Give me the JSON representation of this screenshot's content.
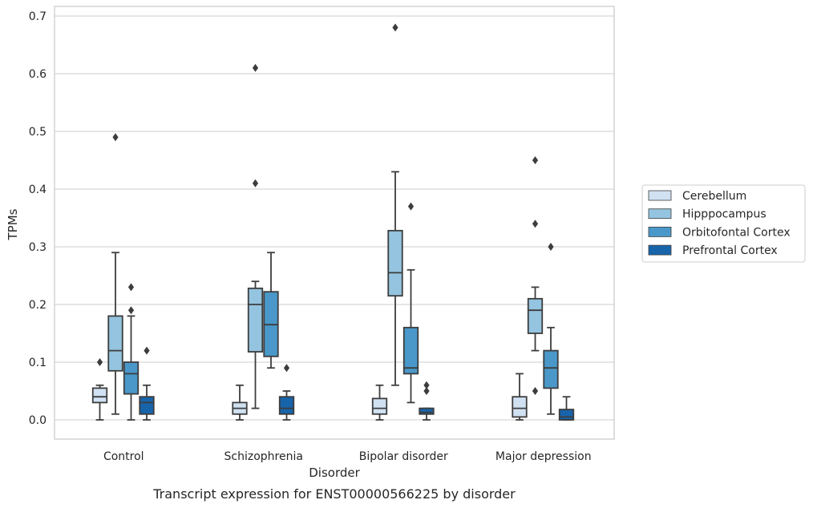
{
  "caption": "Transcript expression for ENST00000566225 by disorder",
  "chart_data": {
    "type": "box",
    "title": "",
    "xlabel": "Disorder",
    "ylabel": "TPMs",
    "ylim": [
      -0.032,
      0.715
    ],
    "yticks": [
      0.0,
      0.1,
      0.2,
      0.3,
      0.4,
      0.5,
      0.6,
      0.7
    ],
    "ytick_labels": [
      "0.0",
      "0.1",
      "0.2",
      "0.3",
      "0.4",
      "0.5",
      "0.6",
      "0.7"
    ],
    "grid": "horizontal",
    "legend_position": "right",
    "categories": [
      "Control",
      "Schizophrenia",
      "Bipolar disorder",
      "Major depression"
    ],
    "series": [
      {
        "name": "Cerebellum",
        "color": "#d0e1f2",
        "boxes": [
          {
            "whislo": 0.0,
            "q1": 0.03,
            "med": 0.04,
            "q3": 0.055,
            "whishi": 0.06,
            "fliers": [
              0.1
            ]
          },
          {
            "whislo": 0.0,
            "q1": 0.01,
            "med": 0.02,
            "q3": 0.03,
            "whishi": 0.06,
            "fliers": []
          },
          {
            "whislo": 0.0,
            "q1": 0.01,
            "med": 0.02,
            "q3": 0.037,
            "whishi": 0.06,
            "fliers": []
          },
          {
            "whislo": 0.0,
            "q1": 0.005,
            "med": 0.02,
            "q3": 0.04,
            "whishi": 0.08,
            "fliers": []
          }
        ]
      },
      {
        "name": "Hipppocampus",
        "color": "#94c4df",
        "boxes": [
          {
            "whislo": 0.01,
            "q1": 0.085,
            "med": 0.12,
            "q3": 0.18,
            "whishi": 0.29,
            "fliers": [
              0.49
            ]
          },
          {
            "whislo": 0.02,
            "q1": 0.118,
            "med": 0.2,
            "q3": 0.228,
            "whishi": 0.24,
            "fliers": [
              0.41,
              0.61
            ]
          },
          {
            "whislo": 0.06,
            "q1": 0.215,
            "med": 0.255,
            "q3": 0.328,
            "whishi": 0.43,
            "fliers": [
              0.68
            ]
          },
          {
            "whislo": 0.12,
            "q1": 0.15,
            "med": 0.19,
            "q3": 0.21,
            "whishi": 0.23,
            "fliers": [
              0.05,
              0.34,
              0.45
            ]
          }
        ]
      },
      {
        "name": "Orbitofontal Cortex",
        "color": "#4a98c9",
        "boxes": [
          {
            "whislo": 0.0,
            "q1": 0.045,
            "med": 0.08,
            "q3": 0.1,
            "whishi": 0.18,
            "fliers": [
              0.19,
              0.23
            ]
          },
          {
            "whislo": 0.09,
            "q1": 0.11,
            "med": 0.165,
            "q3": 0.222,
            "whishi": 0.29,
            "fliers": []
          },
          {
            "whislo": 0.03,
            "q1": 0.08,
            "med": 0.09,
            "q3": 0.16,
            "whishi": 0.26,
            "fliers": [
              0.37
            ]
          },
          {
            "whislo": 0.01,
            "q1": 0.055,
            "med": 0.09,
            "q3": 0.12,
            "whishi": 0.16,
            "fliers": [
              0.3
            ]
          }
        ]
      },
      {
        "name": "Prefrontal Cortex",
        "color": "#1764ab",
        "boxes": [
          {
            "whislo": 0.0,
            "q1": 0.01,
            "med": 0.03,
            "q3": 0.04,
            "whishi": 0.06,
            "fliers": [
              0.12
            ]
          },
          {
            "whislo": 0.0,
            "q1": 0.01,
            "med": 0.02,
            "q3": 0.04,
            "whishi": 0.05,
            "fliers": [
              0.09
            ]
          },
          {
            "whislo": 0.0,
            "q1": 0.01,
            "med": 0.013,
            "q3": 0.02,
            "whishi": 0.02,
            "fliers": [
              0.05,
              0.06
            ]
          },
          {
            "whislo": 0.0,
            "q1": 0.0,
            "med": 0.005,
            "q3": 0.018,
            "whishi": 0.04,
            "fliers": []
          }
        ]
      }
    ]
  }
}
